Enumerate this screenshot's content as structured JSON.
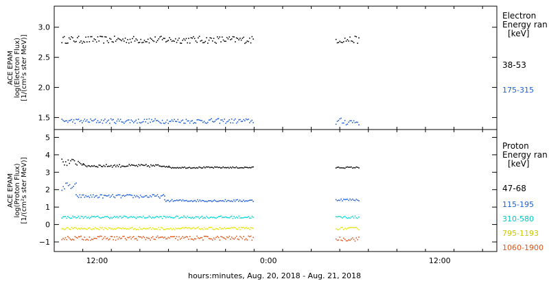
{
  "chart_data": [
    {
      "type": "scatter",
      "panel": "electron",
      "title": "",
      "ylabel_lines": [
        "ACE EPAM",
        "log(Electron Flux)",
        "[1/(cm²s ster MeV)]"
      ],
      "ylim": [
        1.3,
        3.35
      ],
      "yticks": [
        1.5,
        2.0,
        2.5,
        3.0
      ],
      "ytick_labels": [
        "1.5",
        "2.0",
        "2.5",
        "3.0"
      ],
      "legend_title": [
        "Electron",
        "Energy ran",
        "[keV]"
      ],
      "series": [
        {
          "name": "38-53",
          "color": "#000000",
          "segments": [
            {
              "x_start": 9.5,
              "x_end": 22.9,
              "y_mean": 2.8,
              "y_jitter": 0.06
            },
            {
              "x_start": 28.7,
              "x_end": 30.3,
              "y_mean": 2.8,
              "y_jitter": 0.06
            }
          ]
        },
        {
          "name": "175-315",
          "color": "#1f5fd6",
          "segments": [
            {
              "x_start": 9.5,
              "x_end": 22.9,
              "y_mean": 1.45,
              "y_jitter": 0.04
            },
            {
              "x_start": 28.7,
              "x_end": 30.3,
              "y_mean": 1.44,
              "y_jitter": 0.06
            }
          ]
        }
      ]
    },
    {
      "type": "scatter",
      "panel": "proton",
      "title": "",
      "ylabel_lines": [
        "ACE EPAM",
        "log(Proton Flux)",
        "[1/(cm²s ster MeV)]"
      ],
      "ylim": [
        -1.55,
        5.45
      ],
      "yticks": [
        -1,
        0,
        1,
        2,
        3,
        4,
        5
      ],
      "ytick_labels": [
        "−1",
        "0",
        "1",
        "2",
        "3",
        "4",
        "5"
      ],
      "legend_title": [
        "Proton",
        "Energy ran",
        "[keV]"
      ],
      "series": [
        {
          "name": "47-68",
          "color": "#000000",
          "segments": [
            {
              "x_start": 9.5,
              "x_end": 11.0,
              "y_mean": 3.6,
              "y_jitter": 0.2
            },
            {
              "x_start": 11.0,
              "x_end": 17.0,
              "y_mean": 3.4,
              "y_jitter": 0.08
            },
            {
              "x_start": 17.0,
              "x_end": 22.9,
              "y_mean": 3.3,
              "y_jitter": 0.04
            },
            {
              "x_start": 28.7,
              "x_end": 30.3,
              "y_mean": 3.3,
              "y_jitter": 0.04
            }
          ]
        },
        {
          "name": "115-195",
          "color": "#1f5fd6",
          "segments": [
            {
              "x_start": 9.5,
              "x_end": 10.5,
              "y_mean": 2.2,
              "y_jitter": 0.25
            },
            {
              "x_start": 10.5,
              "x_end": 16.7,
              "y_mean": 1.65,
              "y_jitter": 0.1
            },
            {
              "x_start": 16.7,
              "x_end": 22.9,
              "y_mean": 1.4,
              "y_jitter": 0.06
            },
            {
              "x_start": 28.7,
              "x_end": 30.3,
              "y_mean": 1.45,
              "y_jitter": 0.06
            }
          ]
        },
        {
          "name": "310-580",
          "color": "#00d8d8",
          "segments": [
            {
              "x_start": 9.5,
              "x_end": 22.9,
              "y_mean": 0.45,
              "y_jitter": 0.07
            },
            {
              "x_start": 28.7,
              "x_end": 30.3,
              "y_mean": 0.45,
              "y_jitter": 0.07
            }
          ]
        },
        {
          "name": "795-1193",
          "color": "#e6e600",
          "segments": [
            {
              "x_start": 9.5,
              "x_end": 22.9,
              "y_mean": -0.2,
              "y_jitter": 0.07
            },
            {
              "x_start": 28.7,
              "x_end": 30.3,
              "y_mean": -0.2,
              "y_jitter": 0.07
            }
          ]
        },
        {
          "name": "1060-1900",
          "color": "#e0551a",
          "segments": [
            {
              "x_start": 9.5,
              "x_end": 22.9,
              "y_mean": -0.75,
              "y_jitter": 0.12
            },
            {
              "x_start": 28.7,
              "x_end": 30.3,
              "y_mean": -0.8,
              "y_jitter": 0.12
            }
          ]
        }
      ]
    }
  ],
  "xaxis": {
    "xlabel": "hours:minutes, Aug. 20, 2018 - Aug. 21, 2018",
    "xlim": [
      9.0,
      40.0
    ],
    "major_ticks": [
      12,
      24,
      36
    ],
    "major_tick_labels": [
      "12:00",
      "0:00",
      "12:00"
    ],
    "minor_tick_step": 2
  }
}
